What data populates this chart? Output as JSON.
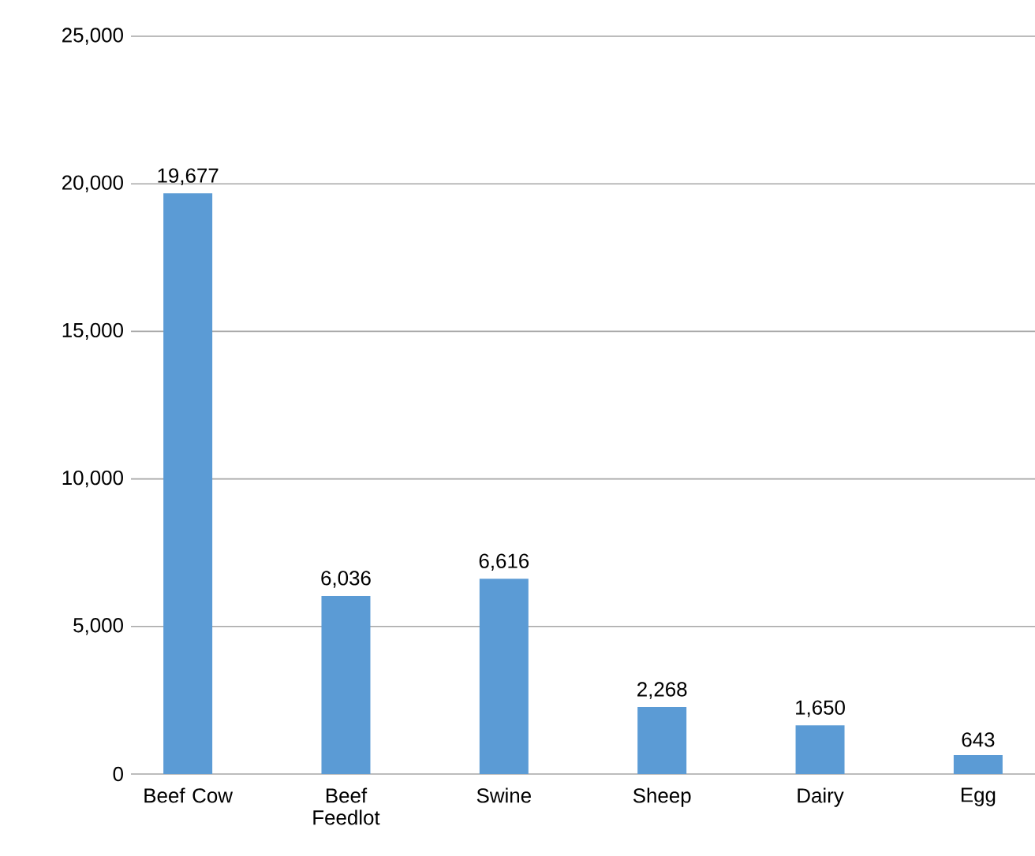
{
  "chart_data": {
    "type": "bar",
    "categories": [
      "Beef Cow",
      "Beef Feedlot",
      "Swine",
      "Sheep",
      "Dairy",
      "Egg"
    ],
    "values": [
      19677,
      6036,
      6616,
      2268,
      1650,
      643
    ],
    "value_labels": [
      "19,677",
      "6,036",
      "6,616",
      "2,268",
      "1,650",
      "643"
    ],
    "color": "#5b9bd5",
    "ylim": [
      0,
      25000
    ],
    "yticks": [
      {
        "value": 0,
        "label": "0"
      },
      {
        "value": 5000,
        "label": "5,000"
      },
      {
        "value": 10000,
        "label": "10,000"
      },
      {
        "value": 15000,
        "label": "15,000"
      },
      {
        "value": 20000,
        "label": "20,000"
      },
      {
        "value": 25000,
        "label": "25,000"
      }
    ],
    "grid": "y"
  }
}
